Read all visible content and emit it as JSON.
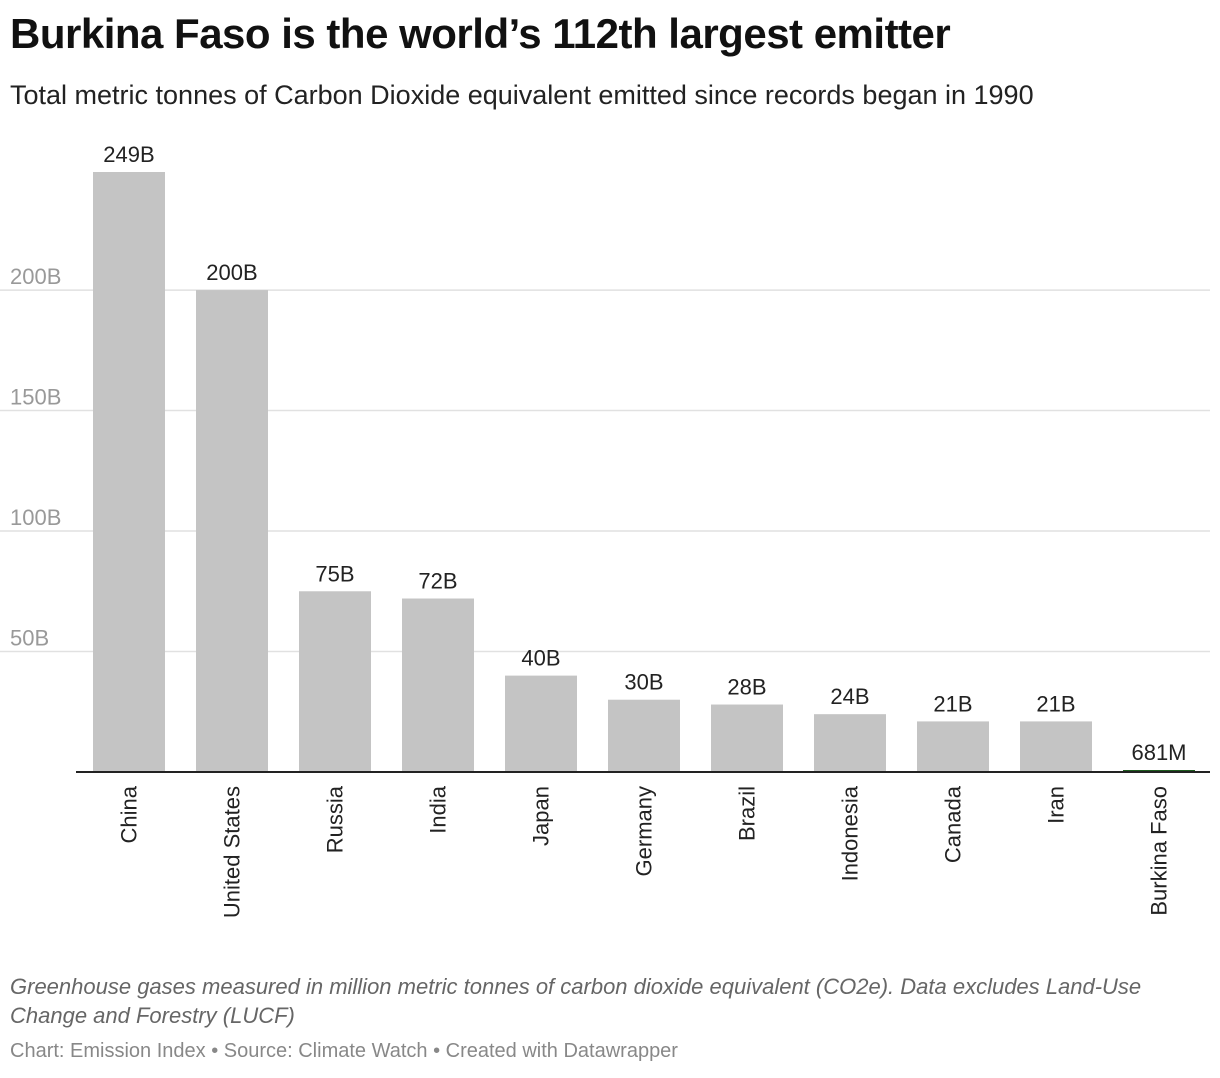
{
  "header": {
    "title": "Burkina Faso is the world’s 112th largest emitter",
    "subtitle": "Total metric tonnes of Carbon Dioxide equivalent emitted since records began in 1990"
  },
  "footer": {
    "note": "Greenhouse gases measured in million metric tonnes of carbon dioxide equivalent (CO2e). Data excludes Land-Use Change and Forestry (LUCF)",
    "credits": "Chart: Emission Index • Source: Climate Watch • Created with Datawrapper"
  },
  "chart_data": {
    "type": "bar",
    "categories": [
      "China",
      "United States",
      "Russia",
      "India",
      "Japan",
      "Germany",
      "Brazil",
      "Indonesia",
      "Canada",
      "Iran",
      "Burkina Faso"
    ],
    "values": [
      249,
      200,
      75,
      72,
      40,
      30,
      28,
      24,
      21,
      21,
      0.681
    ],
    "value_labels": [
      "249B",
      "200B",
      "75B",
      "72B",
      "40B",
      "30B",
      "28B",
      "24B",
      "21B",
      "21B",
      "681M"
    ],
    "unit": "billion tonnes CO2e",
    "yticks": [
      50,
      100,
      150,
      200
    ],
    "ytick_labels": [
      "50B",
      "100B",
      "150B",
      "200B"
    ],
    "ylim": [
      0,
      249
    ],
    "grid": true,
    "colors": {
      "bar": "#c4c4c4",
      "highlight": "#1e5b1e",
      "grid": "#e1e1e1",
      "axis": "#222222",
      "tick_label": "#999999"
    },
    "highlight_category": "Burkina Faso"
  }
}
